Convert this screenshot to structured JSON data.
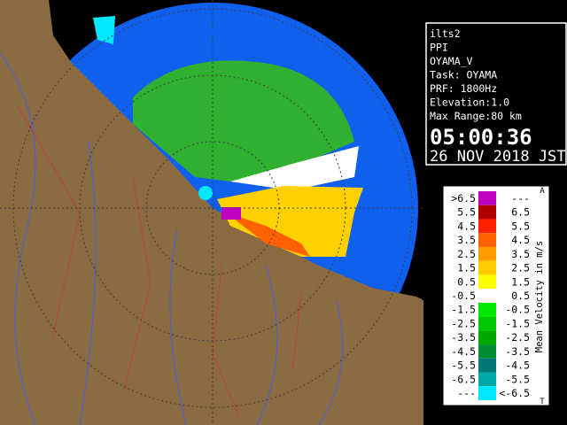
{
  "info": {
    "lines": [
      "ilts2",
      "PPI",
      "OYAMA_V",
      "Task: OYAMA",
      "PRF: 1800Hz",
      "Elevation:1.0",
      "Max Range:80 km"
    ],
    "time": "05:00:36",
    "date": "26 NOV 2018 JST"
  },
  "legend": {
    "title": "Mean Velocity in m/s",
    "top_mark": "A",
    "bottom_mark": "T",
    "rows": [
      {
        "low": ">6.5",
        "high": "---",
        "color": "#c000c0"
      },
      {
        "low": "5.5",
        "high": "6.5",
        "color": "#b00000"
      },
      {
        "low": "4.5",
        "high": "5.5",
        "color": "#ff2000"
      },
      {
        "low": "3.5",
        "high": "4.5",
        "color": "#ff6000"
      },
      {
        "low": "2.5",
        "high": "3.5",
        "color": "#ff9c00"
      },
      {
        "low": "1.5",
        "high": "2.5",
        "color": "#ffcc00"
      },
      {
        "low": "0.5",
        "high": "1.5",
        "color": "#ffff00"
      },
      {
        "low": "-0.5",
        "high": "0.5",
        "color": "#ffffff"
      },
      {
        "low": "-1.5",
        "high": "-0.5",
        "color": "#00e800"
      },
      {
        "low": "-2.5",
        "high": "-1.5",
        "color": "#00c800"
      },
      {
        "low": "-3.5",
        "high": "-2.5",
        "color": "#00a800"
      },
      {
        "low": "-4.5",
        "high": "-3.5",
        "color": "#008c30"
      },
      {
        "low": "-5.5",
        "high": "-4.5",
        "color": "#007878"
      },
      {
        "low": "-6.5",
        "high": "-5.5",
        "color": "#00a8a8"
      },
      {
        "low": "---",
        "high": "<-6.5",
        "color": "#00e8ff"
      }
    ]
  }
}
